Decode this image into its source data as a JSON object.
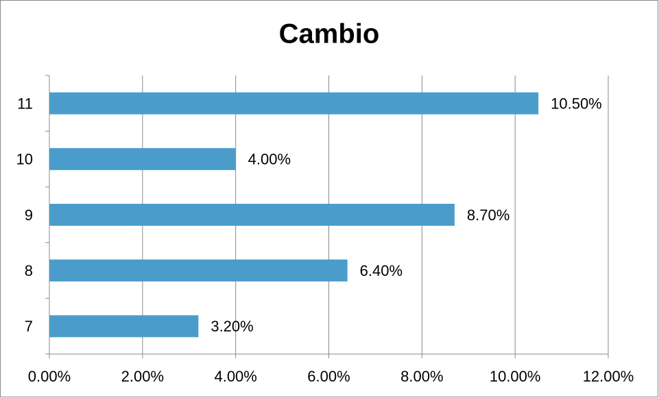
{
  "chart_data": {
    "type": "hbar",
    "title": "Cambio",
    "categories": [
      "7",
      "8",
      "9",
      "10",
      "11"
    ],
    "values": [
      3.2,
      6.4,
      8.7,
      4.0,
      10.5
    ],
    "value_labels": [
      "3.20%",
      "6.40%",
      "8.70%",
      "4.00%",
      "10.50%"
    ],
    "color": "#4a9dcb",
    "xlim": [
      0,
      12
    ],
    "xticks": [
      {
        "value": 0,
        "label": "0.00%"
      },
      {
        "value": 2,
        "label": "2.00%"
      },
      {
        "value": 4,
        "label": "4.00%"
      },
      {
        "value": 6,
        "label": "6.00%"
      },
      {
        "value": 8,
        "label": "8.00%"
      },
      {
        "value": 10,
        "label": "10.00%"
      },
      {
        "value": 12,
        "label": "12.00%"
      }
    ],
    "grid": true
  }
}
